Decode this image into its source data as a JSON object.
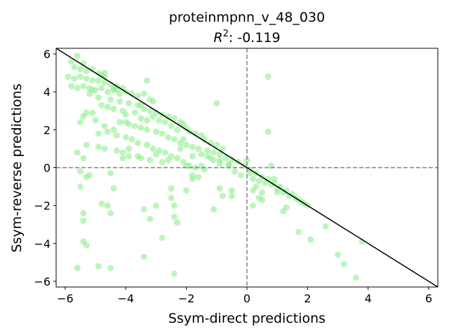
{
  "chart_data": {
    "type": "scatter",
    "title": "proteinmpnn_v_48_030",
    "subtitle_prefix": "R",
    "subtitle_sup": "2",
    "subtitle_value": ": -0.119",
    "xlabel": "Ssym-direct predictions",
    "ylabel": "Ssym-reverse predictions",
    "xlim": [
      -6.3,
      6.3
    ],
    "ylim": [
      -6.3,
      6.3
    ],
    "xticks": [
      -6,
      -4,
      -2,
      0,
      2,
      4,
      6
    ],
    "yticks": [
      -6,
      -4,
      -2,
      0,
      2,
      4,
      6
    ],
    "tick_labels_x": [
      "−6",
      "−4",
      "−2",
      "0",
      "2",
      "4",
      "6"
    ],
    "tick_labels_y": [
      "−6",
      "−4",
      "−2",
      "0",
      "2",
      "4",
      "6"
    ],
    "reference_line": {
      "from": [
        -6.3,
        6.3
      ],
      "to": [
        6.3,
        -6.3
      ],
      "color": "#000000"
    },
    "zero_lines": {
      "color": "#808080",
      "style": "dashed"
    },
    "point_color": "#90ee90",
    "point_alpha": 0.6,
    "points": [
      [
        -5.8,
        5.6
      ],
      [
        -5.6,
        5.9
      ],
      [
        -5.4,
        5.5
      ],
      [
        -5.7,
        5.3
      ],
      [
        -5.5,
        5.2
      ],
      [
        -5.3,
        5.1
      ],
      [
        -5.1,
        5.2
      ],
      [
        -4.9,
        5.0
      ],
      [
        -4.8,
        4.9
      ],
      [
        -4.7,
        4.8
      ],
      [
        -5.9,
        4.8
      ],
      [
        -5.7,
        4.7
      ],
      [
        -5.5,
        4.8
      ],
      [
        -5.3,
        4.7
      ],
      [
        -5.1,
        4.6
      ],
      [
        -4.9,
        4.6
      ],
      [
        -4.7,
        4.5
      ],
      [
        -4.5,
        4.4
      ],
      [
        -4.3,
        4.3
      ],
      [
        -4.1,
        4.2
      ],
      [
        -5.8,
        4.3
      ],
      [
        -5.6,
        4.2
      ],
      [
        -5.4,
        4.3
      ],
      [
        -5.2,
        4.2
      ],
      [
        -5.0,
        4.1
      ],
      [
        -4.8,
        4.2
      ],
      [
        -4.6,
        4.0
      ],
      [
        -4.4,
        4.1
      ],
      [
        -4.2,
        3.9
      ],
      [
        -4.0,
        4.0
      ],
      [
        -3.8,
        3.9
      ],
      [
        -3.6,
        3.8
      ],
      [
        -3.4,
        3.9
      ],
      [
        -3.2,
        3.6
      ],
      [
        -3.3,
        4.6
      ],
      [
        -5.2,
        3.9
      ],
      [
        -4.9,
        3.7
      ],
      [
        -4.5,
        3.6
      ],
      [
        -4.2,
        3.5
      ],
      [
        -3.9,
        3.4
      ],
      [
        -3.6,
        3.3
      ],
      [
        -3.4,
        3.1
      ],
      [
        -3.2,
        3.0
      ],
      [
        -3.0,
        2.9
      ],
      [
        -2.8,
        2.8
      ],
      [
        -2.6,
        2.7
      ],
      [
        -2.4,
        2.6
      ],
      [
        -2.2,
        2.4
      ],
      [
        -2.1,
        2.3
      ],
      [
        -2.0,
        2.1
      ],
      [
        -4.8,
        3.3
      ],
      [
        -4.6,
        3.2
      ],
      [
        -4.4,
        3.1
      ],
      [
        -4.1,
        3.0
      ],
      [
        -4.0,
        2.8
      ],
      [
        -3.7,
        2.9
      ],
      [
        -3.5,
        2.6
      ],
      [
        -3.3,
        2.5
      ],
      [
        -3.1,
        2.7
      ],
      [
        -2.9,
        2.5
      ],
      [
        -2.7,
        2.4
      ],
      [
        -2.5,
        2.2
      ],
      [
        -2.3,
        2.0
      ],
      [
        -1.9,
        1.9
      ],
      [
        -1.7,
        1.8
      ],
      [
        -1.5,
        1.7
      ],
      [
        -1.4,
        1.5
      ],
      [
        -1.2,
        1.3
      ],
      [
        -1.0,
        1.2
      ],
      [
        -0.8,
        1.0
      ],
      [
        -5.3,
        2.9
      ],
      [
        -5.1,
        2.9
      ],
      [
        -5.4,
        2.7
      ],
      [
        -5.5,
        2.4
      ],
      [
        -5.0,
        2.5
      ],
      [
        -4.7,
        2.2
      ],
      [
        -4.4,
        2.0
      ],
      [
        -4.2,
        2.4
      ],
      [
        -3.9,
        2.3
      ],
      [
        -3.7,
        2.2
      ],
      [
        -3.5,
        2.1
      ],
      [
        -3.3,
        2.0
      ],
      [
        -3.0,
        1.9
      ],
      [
        -2.8,
        1.8
      ],
      [
        -2.6,
        1.6
      ],
      [
        -2.4,
        1.5
      ],
      [
        -2.2,
        1.3
      ],
      [
        -2.0,
        1.2
      ],
      [
        -1.8,
        1.1
      ],
      [
        -1.6,
        1.0
      ],
      [
        -1.3,
        0.9
      ],
      [
        -1.1,
        0.8
      ],
      [
        -0.9,
        0.7
      ],
      [
        -0.7,
        0.5
      ],
      [
        -0.5,
        0.4
      ],
      [
        -0.3,
        0.3
      ],
      [
        -0.1,
        0.1
      ],
      [
        0.1,
        -0.1
      ],
      [
        0.3,
        -0.3
      ],
      [
        0.5,
        -0.5
      ],
      [
        -4.9,
        1.8
      ],
      [
        -4.6,
        1.9
      ],
      [
        -4.3,
        1.7
      ],
      [
        -4.0,
        1.6
      ],
      [
        -3.8,
        1.5
      ],
      [
        -3.6,
        1.3
      ],
      [
        -3.3,
        1.2
      ],
      [
        -3.1,
        1.0
      ],
      [
        -2.9,
        0.9
      ],
      [
        -2.7,
        0.8
      ],
      [
        -2.5,
        0.6
      ],
      [
        -2.3,
        0.5
      ],
      [
        -2.1,
        0.3
      ],
      [
        -1.9,
        0.1
      ],
      [
        -1.7,
        0.0
      ],
      [
        -1.5,
        0.7
      ],
      [
        -1.3,
        0.6
      ],
      [
        -1.1,
        0.4
      ],
      [
        -0.9,
        0.2
      ],
      [
        -0.6,
        0.1
      ],
      [
        -5.3,
        1.2
      ],
      [
        -4.9,
        1.1
      ],
      [
        -4.7,
        1.0
      ],
      [
        -4.3,
        0.9
      ],
      [
        -4.1,
        0.8
      ],
      [
        -3.9,
        0.6
      ],
      [
        -3.5,
        0.5
      ],
      [
        -3.2,
        0.4
      ],
      [
        -3.0,
        0.7
      ],
      [
        -2.8,
        0.3
      ],
      [
        -5.6,
        0.8
      ],
      [
        -5.4,
        0.5
      ],
      [
        -5.2,
        -0.4
      ],
      [
        -5.5,
        -0.2
      ],
      [
        -5.3,
        -0.5
      ],
      [
        -4.5,
        -0.3
      ],
      [
        -4.1,
        0.5
      ],
      [
        -2.0,
        0.1
      ],
      [
        -1.8,
        -0.6
      ],
      [
        -1.6,
        -0.5
      ],
      [
        -1.4,
        -0.1
      ],
      [
        -0.4,
        -0.2
      ],
      [
        -0.2,
        -0.4
      ],
      [
        0.0,
        0.4
      ],
      [
        0.2,
        -0.6
      ],
      [
        0.4,
        -0.7
      ],
      [
        0.6,
        -0.8
      ],
      [
        0.8,
        -0.9
      ],
      [
        1.0,
        -1.1
      ],
      [
        1.2,
        -1.3
      ],
      [
        1.4,
        -1.5
      ],
      [
        1.6,
        -1.6
      ],
      [
        1.8,
        -1.8
      ],
      [
        2.0,
        -2.0
      ],
      [
        0.1,
        -0.3
      ],
      [
        0.3,
        -1.0
      ],
      [
        0.5,
        -1.3
      ],
      [
        0.7,
        -0.6
      ],
      [
        0.9,
        -0.8
      ],
      [
        1.1,
        -1.0
      ],
      [
        1.3,
        -1.2
      ],
      [
        1.5,
        -1.4
      ],
      [
        1.7,
        -1.7
      ],
      [
        1.9,
        -1.9
      ],
      [
        0.8,
        0.1
      ],
      [
        0.2,
        -2.0
      ],
      [
        -0.5,
        -1.2
      ],
      [
        -0.8,
        -1.5
      ],
      [
        0.5,
        -1.7
      ],
      [
        1.2,
        -2.3
      ],
      [
        1.3,
        -2.1
      ],
      [
        -1.1,
        -2.2
      ],
      [
        1.7,
        -3.4
      ],
      [
        2.1,
        -3.8
      ],
      [
        2.6,
        -3.1
      ],
      [
        3.0,
        -4.6
      ],
      [
        3.2,
        -5.1
      ],
      [
        3.6,
        -5.8
      ],
      [
        3.8,
        -3.9
      ],
      [
        1.0,
        -1.3
      ],
      [
        0.7,
        4.8
      ],
      [
        0.7,
        1.9
      ],
      [
        -1.0,
        3.4
      ],
      [
        -2.1,
        1.5
      ],
      [
        -3.5,
        3.3
      ],
      [
        -4.3,
        4.1
      ],
      [
        -3.1,
        3.5
      ],
      [
        -5.1,
        4.1
      ],
      [
        -4.7,
        5.0
      ],
      [
        -4.4,
        4.2
      ],
      [
        -5.6,
        -5.3
      ],
      [
        -4.9,
        -5.2
      ],
      [
        -4.5,
        -5.3
      ],
      [
        -2.4,
        -5.6
      ],
      [
        -3.4,
        -4.7
      ],
      [
        -5.3,
        -4.1
      ],
      [
        -5.4,
        -3.9
      ],
      [
        -4.8,
        -1.9
      ],
      [
        -4.6,
        -2.0
      ],
      [
        -4.5,
        -2.4
      ],
      [
        -5.4,
        -2.4
      ],
      [
        -5.4,
        -2.8
      ],
      [
        -5.5,
        -1.0
      ],
      [
        -4.4,
        -1.1
      ],
      [
        -3.4,
        -2.2
      ],
      [
        -3.2,
        -2.7
      ],
      [
        -3.0,
        -2.0
      ],
      [
        -2.8,
        -3.7
      ],
      [
        -2.5,
        -1.1
      ],
      [
        -2.5,
        -1.6
      ],
      [
        -2.4,
        -2.6
      ],
      [
        -2.3,
        -2.9
      ],
      [
        -2.4,
        -2.0
      ],
      [
        -2.0,
        -1.2
      ],
      [
        -1.8,
        -0.4
      ],
      [
        -0.9,
        -1.1
      ],
      [
        -0.5,
        -1.5
      ],
      [
        0.2,
        -1.2
      ],
      [
        0.4,
        -1.6
      ],
      [
        0.9,
        -0.6
      ],
      [
        -2.6,
        0.4
      ],
      [
        -3.9,
        1.0
      ],
      [
        -3.6,
        0.6
      ],
      [
        -4.0,
        2.4
      ],
      [
        -1.5,
        0.1
      ],
      [
        -1.2,
        0.5
      ],
      [
        -0.6,
        0.2
      ],
      [
        -0.9,
        0.4
      ],
      [
        -2.2,
        1.0
      ],
      [
        -1.8,
        0.6
      ]
    ]
  }
}
